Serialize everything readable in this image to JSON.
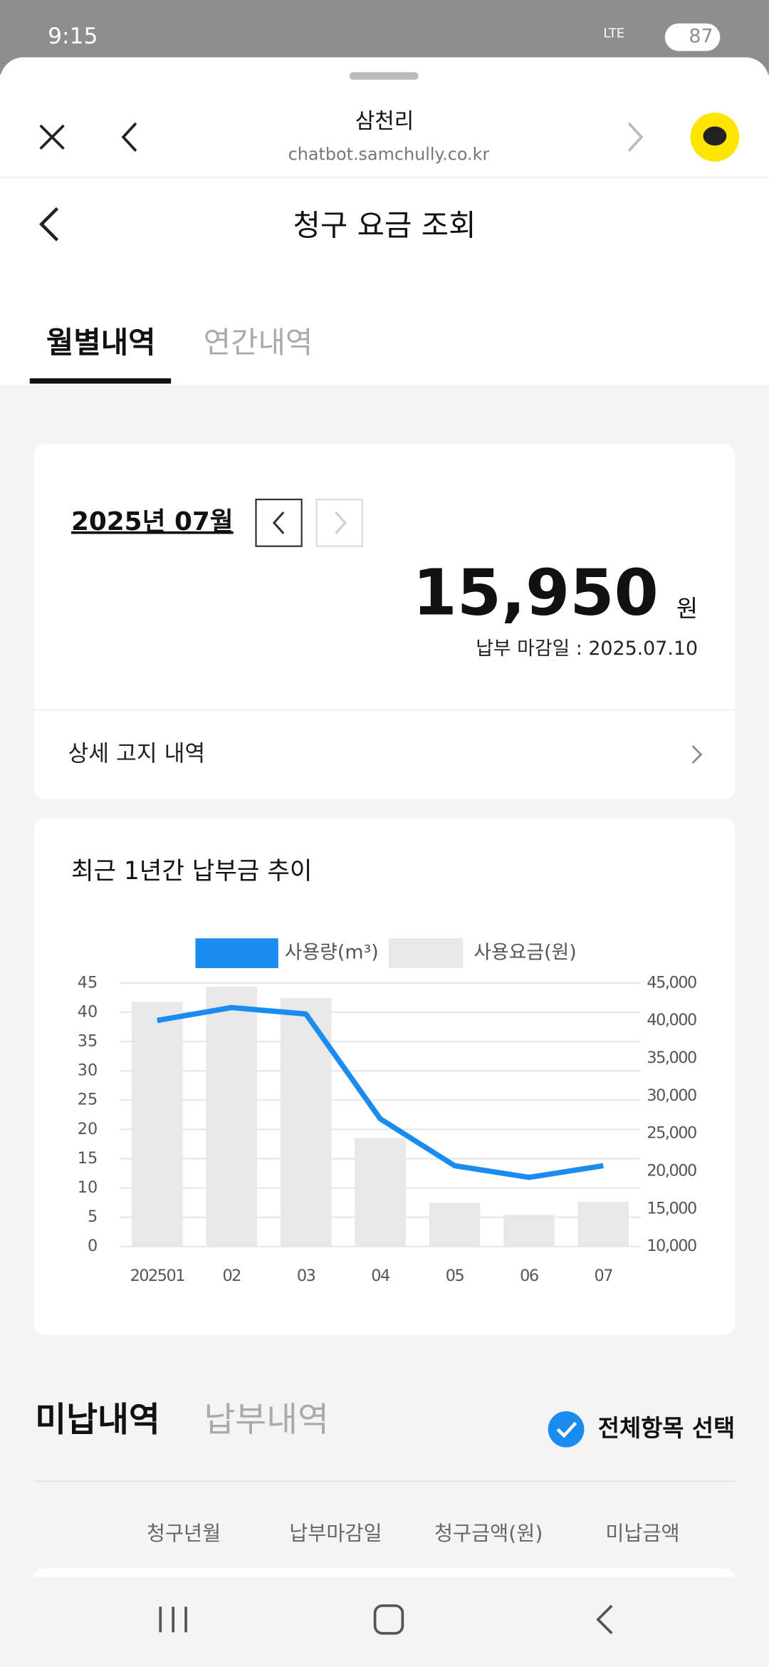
{
  "status_bar": {
    "time": "9:15",
    "network": "LTE",
    "battery": "87"
  },
  "browser": {
    "title": "삼천리",
    "url": "chatbot.samchully.co.kr"
  },
  "header": {
    "title": "청구 요금 조회"
  },
  "tabs": [
    "월별내역",
    "연간내역"
  ],
  "bill": {
    "month": "2025년 07월",
    "amount": "15,950",
    "unit": "원",
    "due": "납부 마감일 : 2025.07.10",
    "detail": "상세 고지 내역"
  },
  "chart_data": {
    "type": "bar",
    "title": "최근 1년간 납부금 추이",
    "categories": [
      "202501",
      "02",
      "03",
      "04",
      "05",
      "06",
      "07"
    ],
    "series": [
      {
        "name": "사용량(m³)",
        "type": "line",
        "color": "#1a8cf0",
        "values": [
          38.6,
          40.8,
          39.7,
          21.8,
          13.8,
          11.8,
          13.8
        ]
      },
      {
        "name": "사용요금(원)",
        "type": "bar",
        "color": "#e8e8e8",
        "axis": "y2",
        "values": [
          42500,
          44500,
          43000,
          24400,
          15800,
          14200,
          15950
        ]
      }
    ],
    "ylim": [
      0,
      45
    ],
    "yticks": [
      0,
      5,
      10,
      15,
      20,
      25,
      30,
      35,
      40,
      45
    ],
    "y2lim": [
      10000,
      45000
    ],
    "y2ticks": [
      {
        "value": 10000,
        "label": "10,000"
      },
      {
        "value": 15000,
        "label": "15,000"
      },
      {
        "value": 20000,
        "label": "20,000"
      },
      {
        "value": 25000,
        "label": "25,000"
      },
      {
        "value": 30000,
        "label": "30,000"
      },
      {
        "value": 35000,
        "label": "35,000"
      },
      {
        "value": 40000,
        "label": "40,000"
      },
      {
        "value": 45000,
        "label": "45,000"
      }
    ],
    "grid": true,
    "legend": "top"
  },
  "unpaid": {
    "tabs": [
      "미납내역",
      "납부내역"
    ],
    "select_all": "전체항목 선택",
    "columns": [
      "청구년월",
      "납부마감일",
      "청구금액(원)",
      "미납금액"
    ]
  }
}
